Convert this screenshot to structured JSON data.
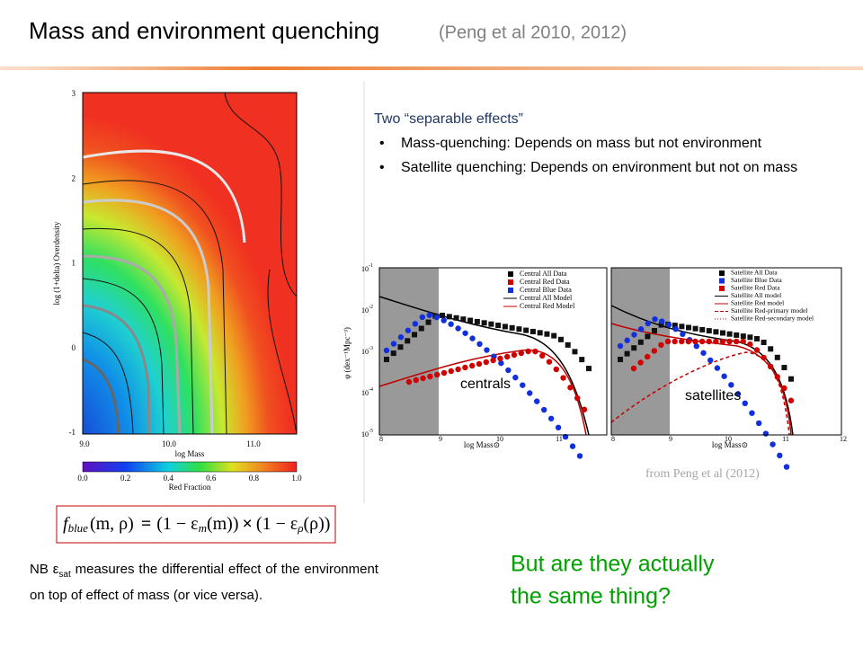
{
  "header": {
    "title": "Mass and environment quenching",
    "subtitle": "(Peng et al 2010, 2012)"
  },
  "left_figure": {
    "y_label": "log (1+delta) Overdensity",
    "y_ticks": [
      3,
      2,
      1,
      0,
      -1
    ],
    "x_label": "log  Mass",
    "x_ticks": [
      "9.0",
      "10.0",
      "11.0"
    ],
    "colorbar_ticks": [
      "0.0",
      "0.2",
      "0.4",
      "0.6",
      "0.8",
      "1.0"
    ],
    "colorbar_label": "Red Fraction"
  },
  "formula": {
    "f": "f",
    "f_sub": "blue",
    "args": "(m, ρ)",
    "eq": "=",
    "t1": "(1 − ε",
    "t1_sub": "m",
    "t1_end": "(m))",
    "times": "×",
    "t2": "(1 − ε",
    "t2_sub": "ρ",
    "t2_end": "(ρ))"
  },
  "note": {
    "start": "NB ε",
    "sub": "sat",
    "rest": " measures the differential effect of the environment on top of effect of mass (or vice versa)."
  },
  "effects": {
    "heading": "Two “separable effects”",
    "bullets": [
      "Mass-quenching: Depends on mass but not environment",
      "Satellite quenching: Depends on environment but not on mass"
    ]
  },
  "right_figure": {
    "y_label": "φ  (dex⁻¹Mpc⁻³)",
    "y_ticks": [
      {
        "base": "10",
        "exp": "-1"
      },
      {
        "base": "10",
        "exp": "-2"
      },
      {
        "base": "10",
        "exp": "-3"
      },
      {
        "base": "10",
        "exp": "-4"
      },
      {
        "base": "10",
        "exp": "-5"
      }
    ],
    "x_label": "log Mass⊙",
    "left_x_ticks": [
      8,
      9,
      10,
      11
    ],
    "right_x_ticks": [
      8,
      9,
      10,
      11,
      12
    ],
    "central_legend": [
      "Central All Data",
      "Central Red Data",
      "Central Blue Data",
      "Central All Model",
      "Central Red Model"
    ],
    "satellite_legend": [
      "Satellite All Data",
      "Satellite Blue Data",
      "Satellite Red Data",
      "Satellite All model",
      "Satellite Red model",
      "Satellite Red-primary model",
      "Satellite Red-secondary model"
    ],
    "central_label": "centrals",
    "satellite_label": "satellites",
    "caption": "from Peng et al (2012)"
  },
  "question": [
    "But are they actually",
    "the same thing?"
  ]
}
